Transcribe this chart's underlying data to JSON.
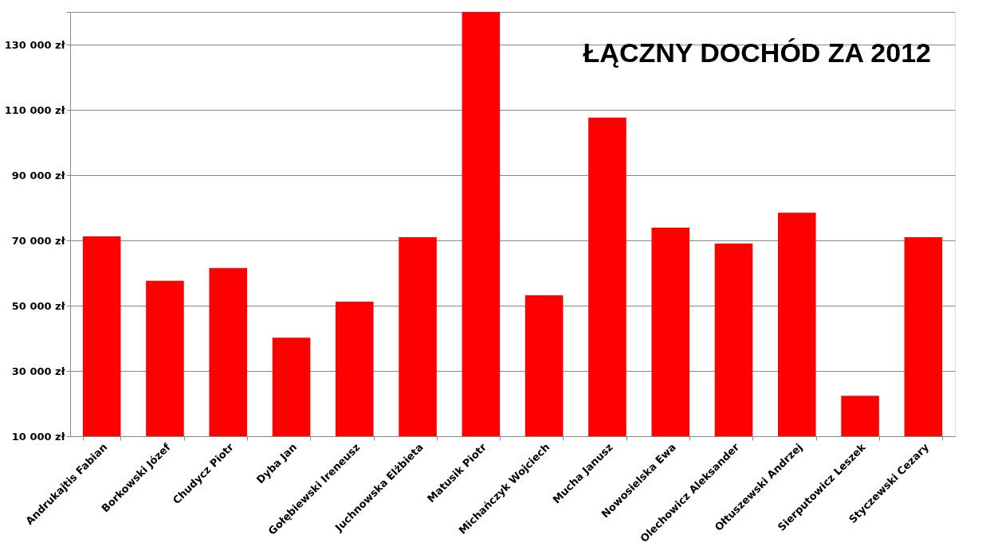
{
  "chart_data": {
    "type": "bar",
    "title": "ŁĄCZNY DOCHÓD ZA 2012",
    "categories": [
      "Andrukajtis Fabian",
      "Borkowski Józef",
      "Chudycz Piotr",
      "Dyba Jan",
      "Gołębiewski Ireneusz",
      "Juchnowska Elżbieta",
      "Matusik Piotr",
      "Michańczyk Wojciech",
      "Mucha Janusz",
      "Nowosielska Ewa",
      "Olechowicz Aleksander",
      "Ołtuszewski Andrzej",
      "Sierputowicz Leszek",
      "Styczewski Cezary"
    ],
    "values": [
      71200,
      57600,
      61500,
      40200,
      51200,
      71000,
      140000,
      53200,
      107600,
      73900,
      69000,
      78500,
      22400,
      71000
    ],
    "color": "#ff0000",
    "ylim": [
      10000,
      140000
    ],
    "yticks": [
      {
        "value": 10000,
        "label": "10 000 zł"
      },
      {
        "value": 30000,
        "label": "30 000 zł"
      },
      {
        "value": 50000,
        "label": "50 000 zł"
      },
      {
        "value": 70000,
        "label": "70 000 zł"
      },
      {
        "value": 90000,
        "label": "90 000 zł"
      },
      {
        "value": 110000,
        "label": "110 000 zł"
      },
      {
        "value": 130000,
        "label": "130 000 zł"
      },
      {
        "value": 140000,
        "label": null
      }
    ],
    "grid": "y"
  }
}
